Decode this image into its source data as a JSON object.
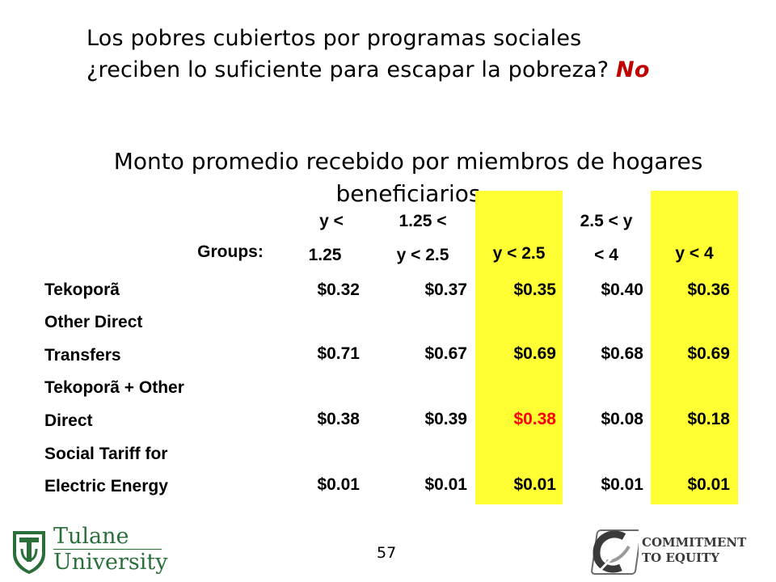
{
  "question": {
    "line1": "Los pobres cubiertos por programas sociales",
    "line2": "¿reciben lo suficiente para escapar la pobreza?",
    "answer": "No"
  },
  "subtitle": "Monto promedio recebido por miembros de hogares beneficiarios",
  "table": {
    "groups_label": "Groups:",
    "headers": [
      {
        "line1": "y <",
        "line2": "1.25",
        "highlight": false
      },
      {
        "line1": "1.25 <",
        "line2": "y < 2.5",
        "highlight": false
      },
      {
        "line1": "",
        "line2": "y < 2.5",
        "highlight": true
      },
      {
        "line1": "2.5 < y",
        "line2": "< 4",
        "highlight": false
      },
      {
        "line1": "",
        "line2": "y < 4",
        "highlight": true
      }
    ],
    "rows": [
      {
        "label1": "Tekoporã",
        "label2": "",
        "values": [
          "$0.32",
          "$0.37",
          "$0.35",
          "$0.40",
          "$0.36"
        ]
      },
      {
        "label1": "Other Direct",
        "label2": "Transfers",
        "values": [
          "$0.71",
          "$0.67",
          "$0.69",
          "$0.68",
          "$0.69"
        ]
      },
      {
        "label1": "Tekoporã + Other",
        "label2": "Direct",
        "values": [
          "$0.38",
          "$0.39",
          "$0.38",
          "$0.08",
          "$0.18"
        ]
      },
      {
        "label1": "Social Tariff for",
        "label2": "Electric Energy",
        "values": [
          "$0.01",
          "$0.01",
          "$0.01",
          "$0.01",
          "$0.01"
        ]
      }
    ],
    "highlight_color": "#ffff33",
    "emphasis_color": "#ff0000"
  },
  "footer": {
    "tulane_line1": "Tulane",
    "tulane_line2": "University",
    "page_number": "57",
    "ceq_line1": "COMMITMENT",
    "ceq_line2": "TO EQUITY"
  }
}
